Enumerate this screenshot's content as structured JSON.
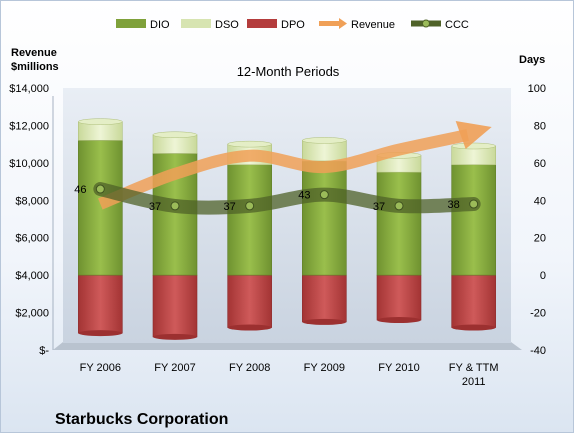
{
  "chart_data": {
    "type": "bar",
    "title": "12-Month Periods",
    "company": "Starbucks Corporation",
    "left_axis_label": [
      "Revenue",
      "$millions"
    ],
    "right_axis_label": "Days",
    "categories": [
      "FY 2006",
      "FY 2007",
      "FY 2008",
      "FY 2009",
      "FY 2010",
      "FY & TTM 2011"
    ],
    "left_axis": {
      "ylim": [
        0,
        14000
      ],
      "ticks": [
        0,
        2000,
        4000,
        6000,
        8000,
        10000,
        12000,
        14000
      ],
      "tick_labels": [
        "$-",
        "$2,000",
        "$4,000",
        "$6,000",
        "$8,000",
        "$10,000",
        "$12,000",
        "$14,000"
      ]
    },
    "right_axis": {
      "ylim": [
        -40,
        100
      ],
      "ticks": [
        -40,
        -20,
        0,
        20,
        40,
        60,
        80,
        100
      ],
      "tick_labels": [
        "-40",
        "-20",
        "0",
        "20",
        "40",
        "60",
        "80",
        "100"
      ]
    },
    "series": [
      {
        "name": "DIO",
        "axis": "right",
        "kind": "stacked-bar",
        "color": "#7fa13a",
        "values": [
          72,
          65,
          59,
          61,
          55,
          59
        ]
      },
      {
        "name": "DSO",
        "axis": "right",
        "kind": "stacked-bar",
        "color": "#d7e4b1",
        "values": [
          10,
          10,
          11,
          11,
          9,
          10
        ]
      },
      {
        "name": "DPO",
        "axis": "right",
        "kind": "bar-negative",
        "color": "#b43c3c",
        "values": [
          -31,
          -33,
          -28,
          -25,
          -24,
          -28
        ]
      },
      {
        "name": "Revenue",
        "axis": "left",
        "kind": "arrow-line",
        "color": "#f0a057",
        "values": [
          7800,
          9411,
          10383,
          9775,
          10707,
          11700
        ]
      },
      {
        "name": "CCC",
        "axis": "right",
        "kind": "line",
        "color": "#4f6228",
        "values": [
          46,
          37,
          37,
          43,
          37,
          38
        ],
        "labels": [
          "46",
          "37",
          "37",
          "43",
          "37",
          "38"
        ]
      }
    ],
    "legend": {
      "position": "top",
      "items": [
        "DIO",
        "DSO",
        "DPO",
        "Revenue",
        "CCC"
      ]
    },
    "grid": false
  }
}
